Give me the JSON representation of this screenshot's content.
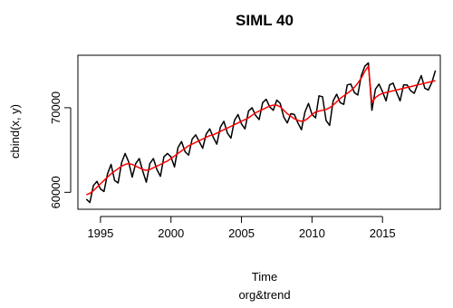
{
  "chart_data": {
    "type": "line",
    "title": "SIML 40",
    "xlabel": "Time",
    "sub": "org&trend",
    "ylabel": "cbind(x, y)",
    "xlim": [
      1993.4,
      2019.1
    ],
    "ylim": [
      58000,
      76200
    ],
    "x_ticks": [
      1995,
      2000,
      2005,
      2010,
      2015
    ],
    "y_ticks": [
      60000,
      70000
    ],
    "grid": false,
    "legend": "none",
    "colors": {
      "original": "#000000",
      "trend": "#ff0000"
    },
    "series": [
      {
        "x": [
          1994.0,
          1994.25,
          1994.5,
          1994.75,
          1995.0,
          1995.25,
          1995.5,
          1995.75,
          1996.0,
          1996.25,
          1996.5,
          1996.75,
          1997.0,
          1997.25,
          1997.5,
          1997.75,
          1998.0,
          1998.25,
          1998.5,
          1998.75,
          1999.0,
          1999.25,
          1999.5,
          1999.75,
          2000.0,
          2000.25,
          2000.5,
          2000.75,
          2001.0,
          2001.25,
          2001.5,
          2001.75,
          2002.0,
          2002.25,
          2002.5,
          2002.75,
          2003.0,
          2003.25,
          2003.5,
          2003.75,
          2004.0,
          2004.25,
          2004.5,
          2004.75,
          2005.0,
          2005.25,
          2005.5,
          2005.75,
          2006.0,
          2006.25,
          2006.5,
          2006.75,
          2007.0,
          2007.25,
          2007.5,
          2007.75,
          2008.0,
          2008.25,
          2008.5,
          2008.75,
          2009.0,
          2009.25,
          2009.5,
          2009.75,
          2010.0,
          2010.25,
          2010.5,
          2010.75,
          2011.0,
          2011.25,
          2011.5,
          2011.75,
          2012.0,
          2012.25,
          2012.5,
          2012.75,
          2013.0,
          2013.25,
          2013.5,
          2013.75,
          2014.0,
          2014.25,
          2014.5,
          2014.75,
          2015.0,
          2015.25,
          2015.5,
          2015.75,
          2016.0,
          2016.25,
          2016.5,
          2016.75,
          2017.0,
          2017.25,
          2017.5,
          2017.75,
          2018.0,
          2018.25,
          2018.5,
          2018.75
        ],
        "values": [
          59200,
          58800,
          60800,
          61300,
          60400,
          60100,
          62200,
          63300,
          61400,
          61100,
          63500,
          64600,
          63600,
          61800,
          63400,
          64000,
          62500,
          61200,
          63400,
          64000,
          62700,
          61900,
          64200,
          64600,
          64200,
          63000,
          65300,
          66000,
          64800,
          64400,
          66300,
          66800,
          66000,
          65200,
          66900,
          67500,
          66500,
          65700,
          67700,
          68400,
          67000,
          66400,
          68500,
          69200,
          68100,
          67500,
          69600,
          70000,
          69100,
          68600,
          70600,
          71000,
          70100,
          69700,
          70900,
          70500,
          68900,
          68200,
          69300,
          69200,
          68200,
          67400,
          69500,
          70500,
          69200,
          68800,
          71400,
          71300,
          68500,
          67900,
          70800,
          71600,
          70600,
          70400,
          72700,
          72800,
          71800,
          71500,
          73800,
          74900,
          75300,
          69700,
          72200,
          72800,
          71900,
          70800,
          72700,
          72900,
          71800,
          70800,
          72700,
          72700,
          72000,
          71700,
          72800,
          73800,
          72300,
          72100,
          73000,
          74400
        ]
      },
      {
        "x": [
          1994.0,
          1994.25,
          1994.5,
          1994.75,
          1995.0,
          1995.25,
          1995.5,
          1995.75,
          1996.0,
          1996.25,
          1996.5,
          1996.75,
          1997.0,
          1997.25,
          1997.5,
          1997.75,
          1998.0,
          1998.25,
          1998.5,
          1998.75,
          1999.0,
          1999.25,
          1999.5,
          1999.75,
          2000.0,
          2000.25,
          2000.5,
          2000.75,
          2001.0,
          2001.25,
          2001.5,
          2001.75,
          2002.0,
          2002.25,
          2002.5,
          2002.75,
          2003.0,
          2003.25,
          2003.5,
          2003.75,
          2004.0,
          2004.25,
          2004.5,
          2004.75,
          2005.0,
          2005.25,
          2005.5,
          2005.75,
          2006.0,
          2006.25,
          2006.5,
          2006.75,
          2007.0,
          2007.25,
          2007.5,
          2007.75,
          2008.0,
          2008.25,
          2008.5,
          2008.75,
          2009.0,
          2009.25,
          2009.5,
          2009.75,
          2010.0,
          2010.25,
          2010.5,
          2010.75,
          2011.0,
          2011.25,
          2011.5,
          2011.75,
          2012.0,
          2012.25,
          2012.5,
          2012.75,
          2013.0,
          2013.25,
          2013.5,
          2013.75,
          2014.0,
          2014.25,
          2014.5,
          2014.75,
          2015.0,
          2015.25,
          2015.5,
          2015.75,
          2016.0,
          2016.25,
          2016.5,
          2016.75,
          2017.0,
          2017.25,
          2017.5,
          2017.75,
          2018.0,
          2018.25,
          2018.5,
          2018.75
        ],
        "values": [
          59700,
          59900,
          60200,
          60600,
          61000,
          61400,
          61800,
          62200,
          62500,
          62800,
          63100,
          63300,
          63400,
          63300,
          63100,
          62900,
          62700,
          62600,
          62700,
          62900,
          63100,
          63300,
          63500,
          63700,
          64000,
          64300,
          64600,
          64900,
          65200,
          65500,
          65700,
          65900,
          66100,
          66300,
          66500,
          66700,
          66800,
          67000,
          67200,
          67400,
          67600,
          67800,
          68000,
          68200,
          68400,
          68600,
          68800,
          69100,
          69400,
          69600,
          69800,
          70000,
          70200,
          70300,
          70300,
          70100,
          69700,
          69300,
          69000,
          68700,
          68500,
          68400,
          68500,
          68800,
          69200,
          69500,
          69600,
          69700,
          69800,
          70000,
          70300,
          70700,
          71100,
          71400,
          71700,
          72000,
          72400,
          72900,
          73500,
          74300,
          74900,
          70600,
          71200,
          71500,
          71700,
          71800,
          71900,
          72000,
          72100,
          72200,
          72300,
          72400,
          72500,
          72600,
          72700,
          72800,
          72900,
          73000,
          73100,
          73200
        ]
      }
    ]
  }
}
